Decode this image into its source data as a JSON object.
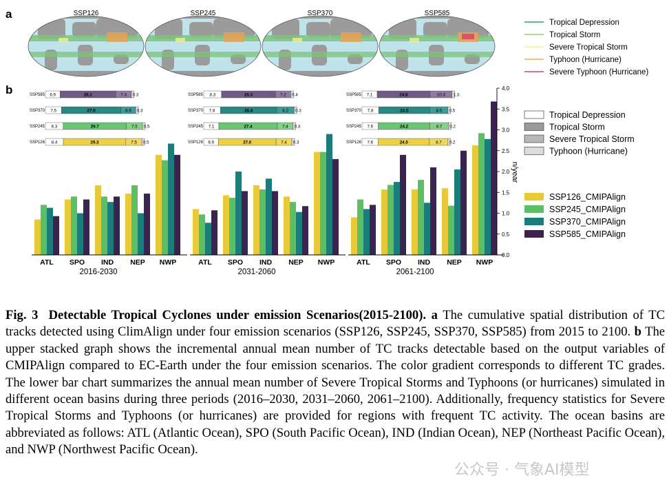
{
  "panel_a": {
    "label": "a",
    "maps": [
      "SSP126",
      "SSP245",
      "SSP370",
      "SSP585"
    ],
    "legend": [
      {
        "label": "Tropical Depression",
        "color": "#2ca25f"
      },
      {
        "label": "Tropical Storm",
        "color": "#8fd16a"
      },
      {
        "label": "Severe Tropical Storm",
        "color": "#f2f08a"
      },
      {
        "label": "Typhoon (Hurricane)",
        "color": "#f7a35c"
      },
      {
        "label": "Severe Typhoon (Hurricane)",
        "color": "#d6406b"
      }
    ]
  },
  "panel_b": {
    "label": "b",
    "ylabel": "n/year",
    "yticks": [
      "0.0",
      "0.5",
      "1.0",
      "1.5",
      "2.0",
      "2.5",
      "3.0",
      "3.5",
      "4.0"
    ],
    "grade_legend": [
      {
        "label": "Tropical Depression",
        "color": "#ffffff"
      },
      {
        "label": "Tropical Storm",
        "color": "#9a9a9a"
      },
      {
        "label": "Severe Tropical Storm",
        "color": "#b8b8b8"
      },
      {
        "label": "Typhoon (Hurricane)",
        "color": "#dcdcdc"
      }
    ],
    "scenario_legend": [
      {
        "label": "SSP126_CMIPAlign",
        "color": "#e8c93a"
      },
      {
        "label": "SSP245_CMIPAlign",
        "color": "#5cbf63"
      },
      {
        "label": "SSP370_CMIPAlign",
        "color": "#1a7d7a"
      },
      {
        "label": "SSP585_CMIPAlign",
        "color": "#3a2350"
      }
    ]
  },
  "chart_data": {
    "type": "bar",
    "basins": [
      "ATL",
      "SPO",
      "IND",
      "NEP",
      "NWP"
    ],
    "ylim": [
      0,
      4
    ],
    "ylabel": "n/year",
    "periods": [
      {
        "name": "2016-2030",
        "series": [
          {
            "name": "SSP126_CMIPAlign",
            "values": [
              0.85,
              1.33,
              1.67,
              1.47,
              2.4
            ]
          },
          {
            "name": "SSP245_CMIPAlign",
            "values": [
              1.2,
              1.4,
              1.4,
              1.67,
              2.27
            ]
          },
          {
            "name": "SSP370_CMIPAlign",
            "values": [
              1.13,
              1.0,
              1.27,
              1.0,
              2.67
            ]
          },
          {
            "name": "SSP585_CMIPAlign",
            "values": [
              0.93,
              1.33,
              1.4,
              1.47,
              2.4
            ]
          }
        ],
        "stacked": [
          {
            "scenario": "SSP585",
            "values": [
              6.9,
              26.1,
              7.3,
              0.3
            ]
          },
          {
            "scenario": "SSP370",
            "values": [
              7.5,
              27.9,
              6.9,
              0.3
            ]
          },
          {
            "scenario": "SSP245",
            "values": [
              8.3,
              29.7,
              7.5,
              0.5
            ]
          },
          {
            "scenario": "SSP126",
            "values": [
              8.4,
              29.3,
              7.5,
              0.5
            ]
          }
        ]
      },
      {
        "name": "2031-2060",
        "series": [
          {
            "name": "SSP126_CMIPAlign",
            "values": [
              1.1,
              1.43,
              1.67,
              1.4,
              2.47
            ]
          },
          {
            "name": "SSP245_CMIPAlign",
            "values": [
              0.97,
              1.37,
              1.57,
              1.27,
              2.47
            ]
          },
          {
            "name": "SSP370_CMIPAlign",
            "values": [
              0.77,
              2.0,
              1.83,
              1.03,
              2.9
            ]
          },
          {
            "name": "SSP585_CMIPAlign",
            "values": [
              1.07,
              1.53,
              1.53,
              1.17,
              2.3
            ]
          }
        ],
        "stacked": [
          {
            "scenario": "SSP585",
            "values": [
              8.3,
              25.3,
              7.2,
              0.4
            ]
          },
          {
            "scenario": "SSP370",
            "values": [
              7.8,
              26.4,
              8.2,
              0.3
            ]
          },
          {
            "scenario": "SSP245",
            "values": [
              7.1,
              27.4,
              7.4,
              0.3
            ]
          },
          {
            "scenario": "SSP126",
            "values": [
              6.9,
              27.0,
              7.4,
              0.3
            ]
          }
        ]
      },
      {
        "name": "2061-2100",
        "series": [
          {
            "name": "SSP126_CMIPAlign",
            "values": [
              0.9,
              1.57,
              1.57,
              1.6,
              2.63
            ]
          },
          {
            "name": "SSP245_CMIPAlign",
            "values": [
              1.33,
              1.68,
              1.8,
              1.18,
              2.92
            ]
          },
          {
            "name": "SSP370_CMIPAlign",
            "values": [
              1.1,
              1.75,
              1.25,
              2.05,
              2.78
            ]
          },
          {
            "name": "SSP585_CMIPAlign",
            "values": [
              1.2,
              2.4,
              2.1,
              2.5,
              3.68
            ]
          }
        ],
        "stacked": [
          {
            "scenario": "SSP585",
            "values": [
              7.1,
              24.8,
              10.3,
              1.3
            ]
          },
          {
            "scenario": "SSP370",
            "values": [
              7.8,
              24.0,
              8.5,
              0.5
            ]
          },
          {
            "scenario": "SSP245",
            "values": [
              7.6,
              24.2,
              8.7,
              0.2
            ]
          },
          {
            "scenario": "SSP126",
            "values": [
              7.6,
              24.0,
              8.7,
              0.2
            ]
          }
        ]
      }
    ]
  },
  "caption": {
    "fig_label": "Fig. 3",
    "title": "Detectable Tropical Cyclones under emission Scenarios(2015-2100).",
    "a_label": "a",
    "a_text": "The cumulative spatial distribution of TC tracks detected using ClimAlign under four emission scenarios (SSP126, SSP245, SSP370, SSP585) from 2015 to 2100.",
    "b_label": "b",
    "b_text": "The upper stacked graph shows the incremental annual mean number of TC tracks detectable based on the output variables of CMIPAlign compared to EC-Earth under the four emission scenarios. The color gradient corresponds to different TC grades. The lower bar chart summarizes the annual mean number of Severe Tropical Storms and Typhoons (or hurricanes) simulated in different ocean basins during three periods (2016–2030, 2031–2060, 2061–2100). Additionally, frequency statistics for Severe Tropical Storms and Typhoons (or hurricanes) are provided for regions with frequent TC activity. The ocean basins are abbreviated as follows: ATL (Atlantic Ocean), SPO (South Pacific Ocean), IND (Indian Ocean), NEP (Northeast Pacific Ocean), and NWP (Northwest Pacific Ocean)."
  },
  "watermark": "公众号 · 气象AI模型"
}
